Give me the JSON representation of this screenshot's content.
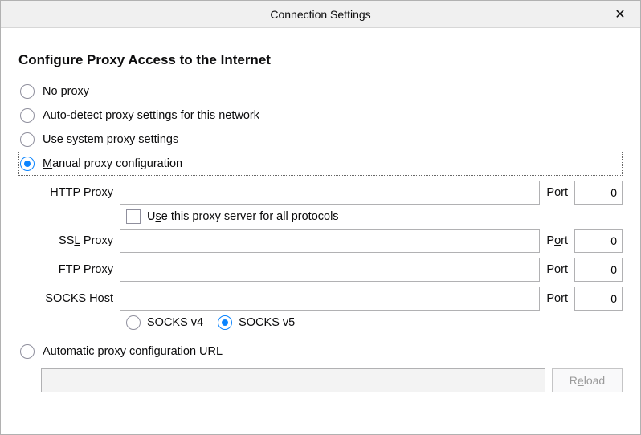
{
  "dialog": {
    "title": "Connection Settings",
    "close_glyph": "✕"
  },
  "section_title": "Configure Proxy Access to the Internet",
  "options": {
    "no_proxy": {
      "label_pre": "No prox",
      "label_ul": "y",
      "label_post": "",
      "selected": false
    },
    "auto_detect": {
      "label_pre": "Auto-detect proxy settings for this net",
      "label_ul": "w",
      "label_post": "ork",
      "selected": false
    },
    "system": {
      "label_pre": "",
      "label_ul": "U",
      "label_post": "se system proxy settings",
      "selected": false
    },
    "manual": {
      "label_pre": "",
      "label_ul": "M",
      "label_post": "anual proxy configuration",
      "selected": true
    },
    "pac": {
      "label_pre": "",
      "label_ul": "A",
      "label_post": "utomatic proxy configuration URL",
      "selected": false
    }
  },
  "manual": {
    "http": {
      "label_pre": "HTTP Pro",
      "label_ul": "x",
      "label_post": "y",
      "host": "",
      "port": "0",
      "port_ul": "P",
      "port_post": "ort"
    },
    "ssl": {
      "label_pre": "SS",
      "label_ul": "L",
      "label_post": " Proxy",
      "host": "",
      "port": "0",
      "port_pre": "P",
      "port_ul": "o",
      "port_post": "rt"
    },
    "ftp": {
      "label_pre": "",
      "label_ul": "F",
      "label_post": "TP Proxy",
      "host": "",
      "port": "0",
      "port_pre": "Po",
      "port_ul": "r",
      "port_post": "t"
    },
    "socks": {
      "label_pre": "SO",
      "label_ul": "C",
      "label_post": "KS Host",
      "host": "",
      "port": "0",
      "port_pre": "Por",
      "port_ul": "t",
      "port_post": ""
    },
    "share_all": {
      "checked": false,
      "label_pre": "U",
      "label_ul": "s",
      "label_post": "e this proxy server for all protocols"
    },
    "socks_version": {
      "v4": {
        "label_pre": "SOC",
        "label_ul": "K",
        "label_post": "S v4",
        "selected": false
      },
      "v5": {
        "label_pre": "SOCKS ",
        "label_ul": "v",
        "label_post": "5",
        "selected": true
      }
    }
  },
  "pac": {
    "url": "",
    "reload_label_pre": "R",
    "reload_label_ul": "e",
    "reload_label_post": "load",
    "enabled": false
  },
  "colors": {
    "accent": "#0a84ff",
    "border": "#b1b1b3",
    "titlebar_bg": "#f0f0f0",
    "disabled_text": "#9a9a9a",
    "disabled_bg": "#f3f3f3"
  }
}
